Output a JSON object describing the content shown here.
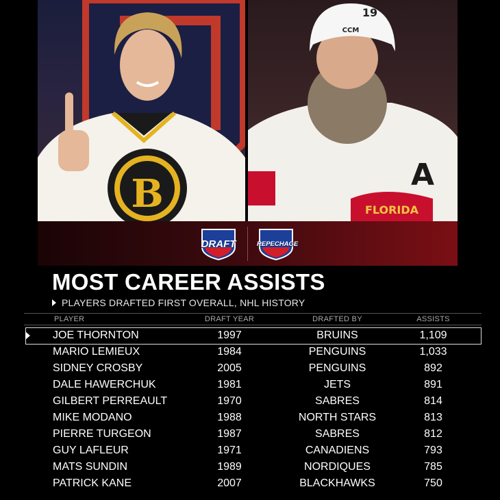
{
  "logos": {
    "draft": "DRAFT",
    "repechage": "REPECHAGE"
  },
  "title": "MOST CAREER ASSISTS",
  "subtitle": "PLAYERS DRAFTED FIRST OVERALL, NHL HISTORY",
  "headers": {
    "player": "PLAYER",
    "year": "DRAFT YEAR",
    "team": "DRAFTED BY",
    "assists": "ASSISTS"
  },
  "rows": [
    {
      "player": "JOE THORNTON",
      "year": "1997",
      "team": "BRUINS",
      "assists": "1,109",
      "highlighted": true
    },
    {
      "player": "MARIO LEMIEUX",
      "year": "1984",
      "team": "PENGUINS",
      "assists": "1,033"
    },
    {
      "player": "SIDNEY CROSBY",
      "year": "2005",
      "team": "PENGUINS",
      "assists": "892"
    },
    {
      "player": "DALE HAWERCHUK",
      "year": "1981",
      "team": "JETS",
      "assists": "891"
    },
    {
      "player": "GILBERT PERREAULT",
      "year": "1970",
      "team": "SABRES",
      "assists": "814"
    },
    {
      "player": "MIKE MODANO",
      "year": "1988",
      "team": "NORTH STARS",
      "assists": "813"
    },
    {
      "player": "PIERRE TURGEON",
      "year": "1987",
      "team": "SABRES",
      "assists": "812"
    },
    {
      "player": "GUY LAFLEUR",
      "year": "1971",
      "team": "CANADIENS",
      "assists": "793"
    },
    {
      "player": "MATS SUNDIN",
      "year": "1989",
      "team": "NORDIQUES",
      "assists": "785"
    },
    {
      "player": "PATRICK KANE",
      "year": "2007",
      "team": "BLACKHAWKS",
      "assists": "750"
    }
  ],
  "colors": {
    "background": "#000000",
    "banner": "#7a0f14",
    "text": "#ffffff",
    "muted": "#aaaaaa"
  }
}
